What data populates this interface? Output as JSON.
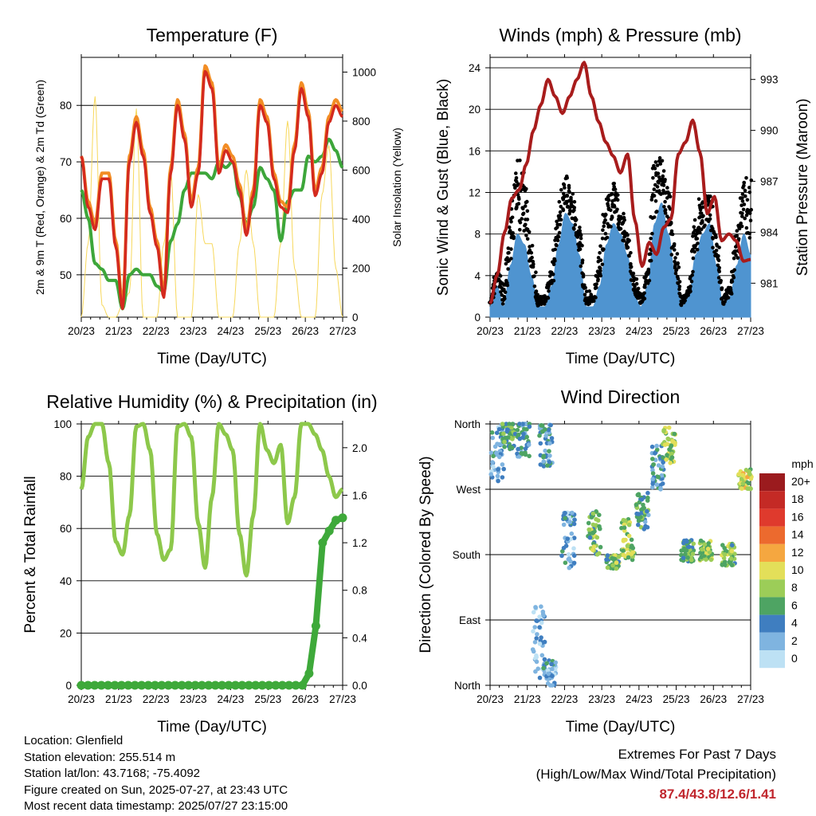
{
  "chart_data": [
    {
      "type": "line",
      "title": "Temperature (F)",
      "xlabel": "Time (Day/UTC)",
      "ylabel": "2m & 9m T (Red, Orange) & 2m Td (Green)",
      "ylabel_right": "Solar Insolation (Yellow)",
      "xticks": [
        "20/23",
        "21/23",
        "22/23",
        "23/23",
        "24/23",
        "25/23",
        "26/23",
        "27/23"
      ],
      "ylim": [
        42.5,
        88.5
      ],
      "yticks": [
        50,
        60,
        70,
        80
      ],
      "ylim_right": [
        0,
        1060
      ],
      "yticks_right": [
        0,
        200,
        400,
        600,
        800,
        1000
      ],
      "series": [
        {
          "color": "#d42a1e",
          "values": [
            71,
            62,
            58,
            67,
            67,
            55,
            44,
            70,
            77,
            71,
            61,
            55,
            46,
            68,
            80,
            74,
            62,
            68,
            86,
            83,
            68,
            72,
            70,
            65,
            57,
            64,
            80,
            77,
            67,
            62,
            61,
            72,
            83,
            78,
            64,
            68,
            77,
            80,
            78
          ]
        },
        {
          "color": "#f28d25",
          "values": [
            71,
            63,
            59,
            68,
            68,
            56,
            45,
            71,
            78,
            72,
            62,
            56,
            47,
            69,
            81,
            75,
            63,
            69,
            87,
            84,
            69,
            73,
            71,
            66,
            58,
            65,
            81,
            78,
            68,
            63,
            62,
            73,
            84,
            79,
            65,
            69,
            78,
            81,
            79
          ]
        },
        {
          "color": "#3da63a",
          "values": [
            65,
            60,
            52,
            51,
            49,
            49,
            44,
            50,
            51,
            50,
            50,
            48,
            47,
            56,
            59,
            65,
            68,
            68,
            68,
            67,
            70,
            69,
            70,
            64,
            59,
            62,
            69,
            67,
            65,
            56,
            63,
            65,
            65,
            71,
            70,
            71,
            74,
            72,
            69
          ]
        },
        {
          "color": "#f7d85c",
          "values": [
            0,
            300,
            900,
            50,
            0,
            0,
            50,
            100,
            850,
            0,
            0,
            0,
            300,
            600,
            0,
            0,
            0,
            500,
            300,
            300,
            0,
            0,
            0,
            300,
            600,
            300,
            0,
            0,
            0,
            300,
            800,
            200,
            0,
            0,
            0,
            500,
            700,
            200,
            0
          ]
        }
      ]
    },
    {
      "type": "scatter",
      "title": "Winds (mph) & Pressure (mb)",
      "xlabel": "Time (Day/UTC)",
      "ylabel": "Sonic Wind & Gust (Blue, Black)",
      "ylabel_right": "Station Pressure (Maroon)",
      "xticks": [
        "20/23",
        "21/23",
        "22/23",
        "23/23",
        "24/23",
        "25/23",
        "26/23",
        "27/23"
      ],
      "ylim": [
        0,
        25
      ],
      "yticks": [
        0,
        4,
        8,
        12,
        16,
        20,
        24
      ],
      "ylim_right": [
        979,
        994.3
      ],
      "yticks_right": [
        981,
        984,
        987,
        990,
        993
      ],
      "series": [
        {
          "color": "#4f94d0",
          "values": [
            1,
            3,
            1,
            5,
            8,
            7,
            4,
            1,
            1,
            3,
            7,
            10,
            9,
            6,
            1,
            1,
            3,
            7,
            9,
            8,
            6,
            2,
            1,
            3,
            9,
            11,
            8,
            4,
            1,
            2,
            6,
            8,
            9,
            5,
            1,
            2,
            5,
            8,
            6
          ]
        },
        {
          "color": "#000000",
          "values": [
            2,
            5,
            3,
            10,
            16,
            14,
            7,
            2,
            2,
            5,
            11,
            14,
            12,
            9,
            3,
            2,
            6,
            12,
            13,
            11,
            8,
            4,
            2,
            5,
            15,
            16,
            12,
            7,
            2,
            3,
            10,
            12,
            12,
            8,
            2,
            3,
            9,
            13,
            14
          ]
        },
        {
          "color": "#a81c1c",
          "values": [
            979.8,
            981.5,
            984,
            986,
            986.5,
            988,
            990,
            991.5,
            993,
            992,
            991,
            992,
            993,
            994,
            992,
            990.5,
            989.3,
            988.5,
            987.5,
            988.6,
            984.7,
            982,
            983.4,
            982.7,
            984.3,
            984.8,
            988.6,
            989.3,
            990.6,
            988.7,
            985.1,
            986.1,
            983.5,
            983.9,
            983.5,
            982.3,
            982.4
          ]
        }
      ]
    },
    {
      "type": "line",
      "title": "Relative Humidity (%) & Precipitation (in)",
      "xlabel": "Time (Day/UTC)",
      "ylabel": "Percent & Total Rainfall",
      "xticks": [
        "20/23",
        "21/23",
        "22/23",
        "23/23",
        "24/23",
        "25/23",
        "26/23",
        "27/23"
      ],
      "ylim": [
        0,
        100
      ],
      "yticks": [
        0,
        20,
        40,
        60,
        80,
        100
      ],
      "ylim_right": [
        0,
        2.2
      ],
      "yticks_right": [
        "0.0",
        "0.4",
        "0.8",
        "1.2",
        "1.6",
        "2.0"
      ],
      "series": [
        {
          "color": "#8dc84b",
          "values": [
            75,
            95,
            100,
            100,
            85,
            55,
            50,
            65,
            99,
            100,
            90,
            58,
            48,
            52,
            99,
            100,
            95,
            62,
            45,
            72,
            100,
            96,
            90,
            58,
            42,
            65,
            100,
            90,
            85,
            92,
            62,
            72,
            100,
            100,
            96,
            90,
            80,
            72,
            75
          ]
        },
        {
          "color": "#3ea93a",
          "values": [
            0,
            0,
            0,
            0,
            0,
            0,
            0,
            0,
            0,
            0,
            0,
            0,
            0,
            0,
            0,
            0,
            0,
            0,
            0,
            0,
            0,
            0,
            0,
            0,
            0,
            0,
            0,
            0,
            0,
            0,
            0,
            0,
            0,
            0,
            0.1,
            0.5,
            1.2,
            1.3,
            1.39,
            1.41
          ]
        }
      ]
    },
    {
      "type": "scatter",
      "title": "Wind Direction",
      "xlabel": "Time (Day/UTC)",
      "ylabel": "Direction (Colored By Speed)",
      "xticks": [
        "20/23",
        "21/23",
        "22/23",
        "23/23",
        "24/23",
        "25/23",
        "26/23",
        "27/23"
      ],
      "yticks": [
        "North",
        "East",
        "South",
        "West",
        "North"
      ],
      "ylim": [
        0,
        360
      ],
      "colorbar_title": "mph",
      "colorbar_labels": [
        "20+",
        "18",
        "16",
        "14",
        "12",
        "10",
        "8",
        "6",
        "4",
        "2",
        "0"
      ],
      "colorbar_colors": [
        "#9b1b1e",
        "#c42a25",
        "#df3a2d",
        "#ec6a2e",
        "#f5a740",
        "#e3df59",
        "#9ccd58",
        "#4ea463",
        "#3f7ec0",
        "#7fb4e0",
        "#bde1f4"
      ],
      "clusters": [
        {
          "x": 0.2,
          "dir": 320,
          "spread": 40,
          "speed": 3
        },
        {
          "x": 0.5,
          "dir": 345,
          "spread": 20,
          "speed": 6
        },
        {
          "x": 0.9,
          "dir": 340,
          "spread": 25,
          "speed": 4
        },
        {
          "x": 1.5,
          "dir": 330,
          "spread": 30,
          "speed": 4
        },
        {
          "x": 1.3,
          "dir": 60,
          "spread": 50,
          "speed": 2
        },
        {
          "x": 1.6,
          "dir": 15,
          "spread": 20,
          "speed": 3
        },
        {
          "x": 2.1,
          "dir": 200,
          "spread": 40,
          "speed": 3
        },
        {
          "x": 2.8,
          "dir": 210,
          "spread": 30,
          "speed": 7
        },
        {
          "x": 3.3,
          "dir": 170,
          "spread": 10,
          "speed": 7
        },
        {
          "x": 3.7,
          "dir": 200,
          "spread": 30,
          "speed": 8
        },
        {
          "x": 4.1,
          "dir": 240,
          "spread": 25,
          "speed": 5
        },
        {
          "x": 4.5,
          "dir": 300,
          "spread": 30,
          "speed": 4
        },
        {
          "x": 4.8,
          "dir": 330,
          "spread": 25,
          "speed": 8
        },
        {
          "x": 5.3,
          "dir": 185,
          "spread": 15,
          "speed": 6
        },
        {
          "x": 5.8,
          "dir": 185,
          "spread": 15,
          "speed": 8
        },
        {
          "x": 6.4,
          "dir": 180,
          "spread": 15,
          "speed": 7
        },
        {
          "x": 6.85,
          "dir": 285,
          "spread": 15,
          "speed": 9
        }
      ]
    }
  ],
  "info": {
    "location": "Location: Glenfield",
    "elevation": "Station elevation: 255.514 m",
    "latlon": "Station lat/lon: 43.7168; -75.4092",
    "created": "Figure created on Sun, 2025-07-27, at 23:43 UTC",
    "recent": "Most recent data timestamp: 2025/07/27 23:15:00"
  },
  "extremes": {
    "line1": "Extremes For Past 7 Days",
    "line2": "(High/Low/Max Wind/Total Precipitation)",
    "values": "87.4/43.8/12.6/1.41"
  }
}
